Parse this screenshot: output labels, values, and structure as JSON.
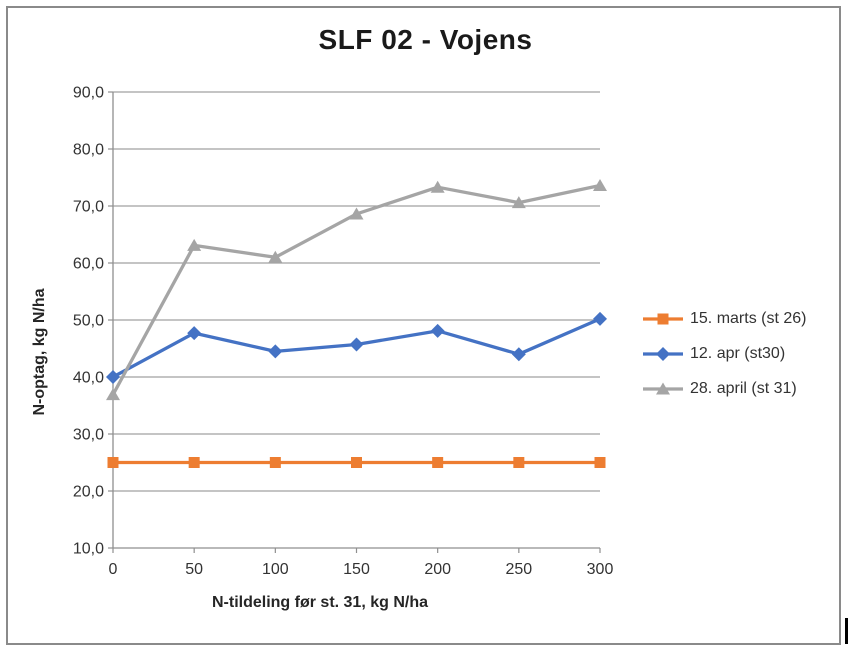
{
  "chart_data": {
    "type": "line",
    "title": "SLF 02 - Vojens",
    "xlabel": "N-tildeling før st. 31, kg N/ha",
    "ylabel": "N-optag, kg N/ha",
    "x": [
      0,
      50,
      100,
      150,
      200,
      250,
      300
    ],
    "x_tick_labels": [
      "0",
      "50",
      "100",
      "150",
      "200",
      "250",
      "300"
    ],
    "y_ticks": [
      10,
      20,
      30,
      40,
      50,
      60,
      70,
      80,
      90
    ],
    "y_tick_labels": [
      "10,0",
      "20,0",
      "30,0",
      "40,0",
      "50,0",
      "60,0",
      "70,0",
      "80,0",
      "90,0"
    ],
    "xlim": [
      0,
      300
    ],
    "ylim": [
      10,
      90
    ],
    "grid": true,
    "legend_position": "right",
    "series": [
      {
        "name": "15. marts (st 26)",
        "color": "#ED7D31",
        "marker": "square",
        "values": [
          25.0,
          25.0,
          25.0,
          25.0,
          25.0,
          25.0,
          25.0
        ]
      },
      {
        "name": "12. apr (st30)",
        "color": "#4472C4",
        "marker": "diamond",
        "values": [
          40.0,
          47.7,
          44.5,
          45.7,
          48.1,
          44.0,
          50.2
        ]
      },
      {
        "name": "28. april (st 31)",
        "color": "#A5A5A5",
        "marker": "triangle",
        "values": [
          36.9,
          63.1,
          61.0,
          68.6,
          73.3,
          70.6,
          73.6
        ]
      }
    ],
    "colors": {
      "gridline": "#a0a0a0",
      "axis": "#8f8f8f",
      "tick_text": "#333333",
      "title_text": "#1a1a1a",
      "frame_border": "#8a8a8a"
    }
  }
}
